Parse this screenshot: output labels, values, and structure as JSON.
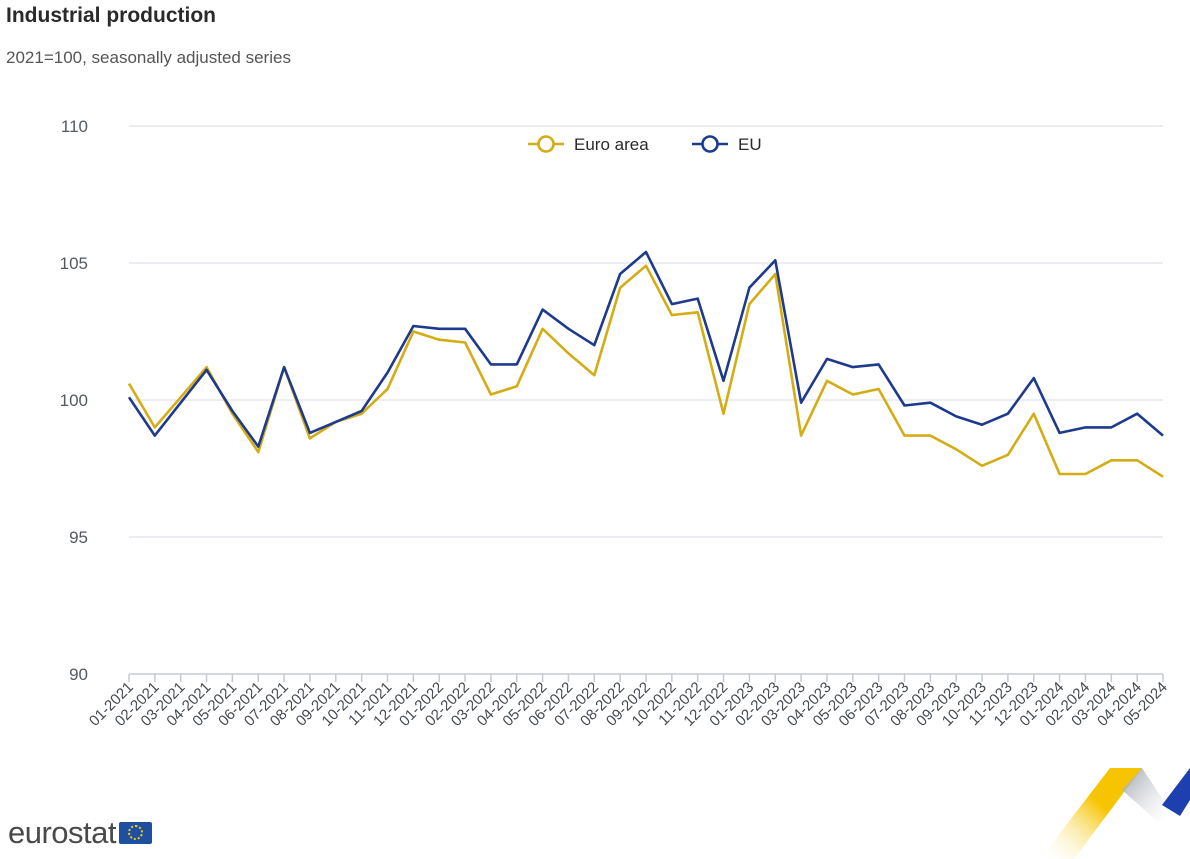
{
  "header": {
    "title": "Industrial production",
    "subtitle": "2021=100, seasonally adjusted series"
  },
  "logo": {
    "text": "eurostat",
    "flag_icon": "eu-flag-icon"
  },
  "colors": {
    "euro_area": "#d4ac14",
    "eu": "#1e3a8c",
    "grid": "#e6e8ef",
    "axis": "#c7cad3"
  },
  "chart_data": {
    "type": "line",
    "title": "Industrial production",
    "subtitle": "2021=100, seasonally adjusted series",
    "xlabel": "",
    "ylabel": "",
    "ylim": [
      90,
      110
    ],
    "yticks": [
      90,
      95,
      100,
      105,
      110
    ],
    "grid": true,
    "legend": "top-center",
    "categories": [
      "01-2021",
      "02-2021",
      "03-2021",
      "04-2021",
      "05-2021",
      "06-2021",
      "07-2021",
      "08-2021",
      "09-2021",
      "10-2021",
      "11-2021",
      "12-2021",
      "01-2022",
      "02-2022",
      "03-2022",
      "04-2022",
      "05-2022",
      "06-2022",
      "07-2022",
      "08-2022",
      "09-2022",
      "10-2022",
      "11-2022",
      "12-2022",
      "01-2023",
      "02-2023",
      "03-2023",
      "04-2023",
      "05-2023",
      "06-2023",
      "07-2023",
      "08-2023",
      "09-2023",
      "10-2023",
      "11-2023",
      "12-2023",
      "01-2024",
      "02-2024",
      "03-2024",
      "04-2024",
      "05-2024"
    ],
    "series": [
      {
        "name": "Euro area",
        "color": "#d4ac14",
        "values": [
          100.6,
          99.0,
          100.1,
          101.2,
          99.5,
          98.1,
          101.2,
          98.6,
          99.2,
          99.5,
          100.4,
          102.5,
          102.2,
          102.1,
          100.2,
          100.5,
          102.6,
          101.7,
          100.9,
          104.1,
          104.9,
          103.1,
          103.2,
          99.5,
          103.5,
          104.6,
          98.7,
          100.7,
          100.2,
          100.4,
          98.7,
          98.7,
          98.2,
          97.6,
          98.0,
          99.5,
          97.3,
          97.3,
          97.8,
          97.8,
          97.2
        ]
      },
      {
        "name": "EU",
        "color": "#1e3a8c",
        "values": [
          100.1,
          98.7,
          99.9,
          101.1,
          99.6,
          98.3,
          101.2,
          98.8,
          99.2,
          99.6,
          101.0,
          102.7,
          102.6,
          102.6,
          101.3,
          101.3,
          103.3,
          102.6,
          102.0,
          104.6,
          105.4,
          103.5,
          103.7,
          100.7,
          104.1,
          105.1,
          99.9,
          101.5,
          101.2,
          101.3,
          99.8,
          99.9,
          99.4,
          99.1,
          99.5,
          100.8,
          98.8,
          99.0,
          99.0,
          99.5,
          98.7
        ]
      }
    ]
  }
}
